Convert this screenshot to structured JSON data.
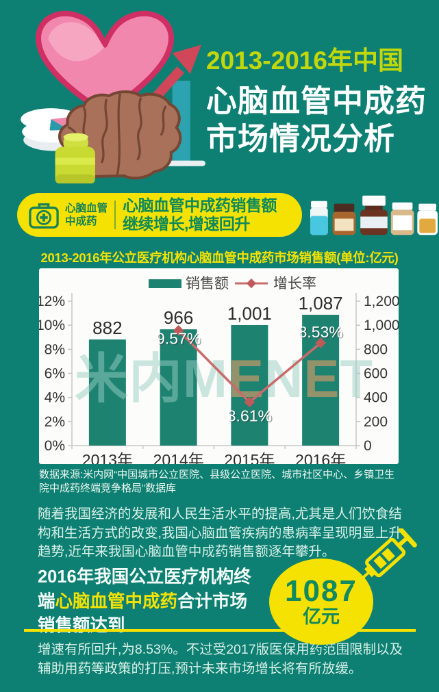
{
  "colors": {
    "background": "#0d8073",
    "yellow": "#f5e202",
    "title_accent": "#c3d80b",
    "bar": "#1d8270",
    "line": "#c96b6b",
    "dark_green_text": "#0d8a5c",
    "body_text": "#d9f0e8"
  },
  "header": {
    "title_line1": "2013-2016年中国",
    "title_line2": "心脑血管中成药",
    "title_line3": "市场情况分析"
  },
  "banner": {
    "badge_line1": "心脑血管",
    "badge_line2": "中成药",
    "headline_line1": "心脑血管中成药销售额",
    "headline_line2": "继续增长,增速回升"
  },
  "chart_section": {
    "title": "2013-2016年公立医疗机构心脑血管中成药市场销售额(单位:亿元)",
    "watermark": "米内MENET",
    "source": "数据来源:米内网“中国城市公立医院、县级公立医院、城市社区中心、乡镇卫生院中成药终端竞争格局”数据库"
  },
  "chart_data": {
    "type": "bar",
    "title": "2013-2016年公立医疗机构心脑血管中成药市场销售额(单位:亿元)",
    "categories": [
      "2013年",
      "2014年",
      "2015年",
      "2016年"
    ],
    "series": [
      {
        "name": "销售额",
        "type": "bar",
        "axis": "right",
        "values": [
          882,
          966,
          1001,
          1087
        ],
        "color": "#1d8270"
      },
      {
        "name": "增长率",
        "type": "line",
        "axis": "left",
        "values": [
          null,
          9.57,
          3.61,
          8.53
        ],
        "labels": [
          null,
          "9.57%",
          "3.61%",
          "8.53%"
        ],
        "color": "#c96b6b"
      }
    ],
    "left_axis": {
      "min": 0,
      "max": 12,
      "step": 2,
      "suffix": "%"
    },
    "right_axis": {
      "min": 0,
      "max": 1200,
      "step": 200
    },
    "legend_position": "top",
    "grid": false
  },
  "paragraphs": {
    "p1": "随着我国经济的发展和人民生活水平的提高,尤其是人们饮食结构和生活方式的改变,我国心脑血管疾病的患病率呈现明显上升趋势,近年来我国心脑血管中成药销售额逐年攀升。",
    "p2": "增速有所回升,为8.53%。不过受2017版医保用药范围限制以及辅助用药等政策的打压,预计未来市场增长将有所放缓。"
  },
  "highlight": {
    "line1": "2016年我国公立医疗机构终",
    "line2_pre": "端",
    "line2_em": "心脑血管中成药",
    "line2_post": "合计市场",
    "line3": "销售额达到",
    "circle_value": "1087",
    "circle_unit": "亿元"
  }
}
